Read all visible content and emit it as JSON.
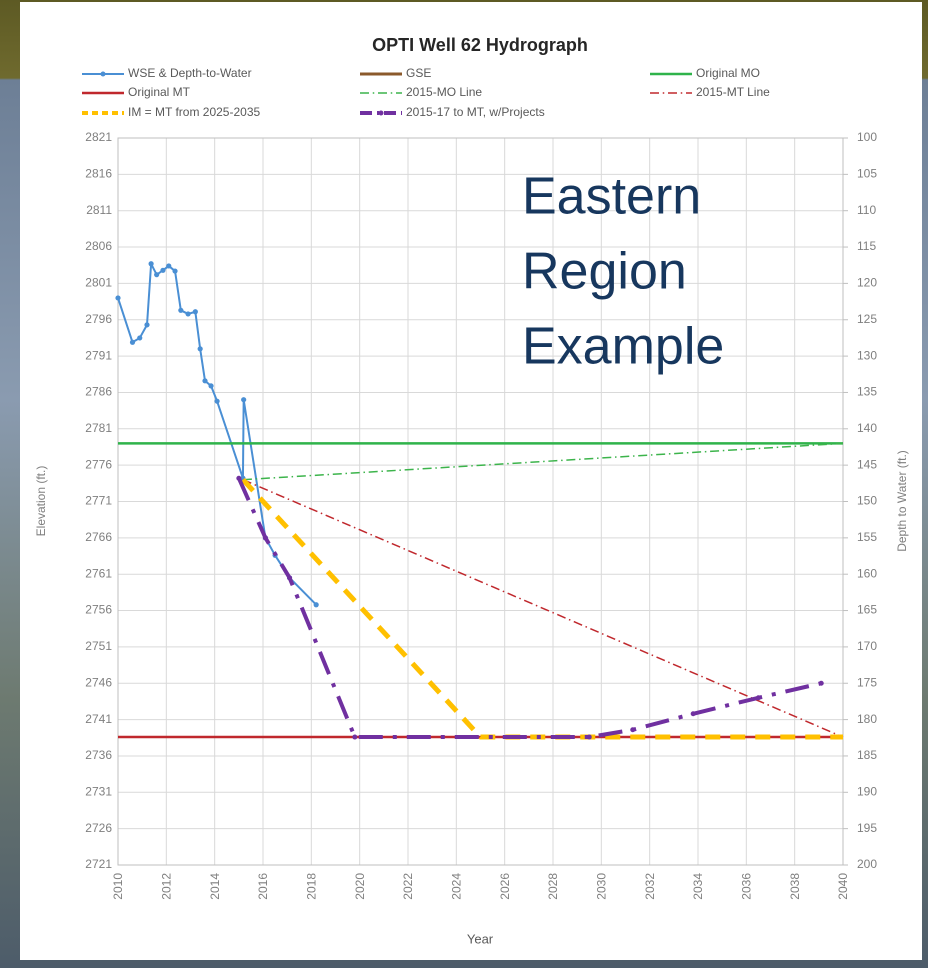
{
  "chart_data": {
    "type": "line",
    "title": "OPTI Well 62 Hydrograph",
    "annotation": [
      "Eastern",
      "Region",
      "Example"
    ],
    "x_label": "Year",
    "y_label": "Elevation (ft.)",
    "y2_label": "Depth to Water (ft.)",
    "xlim": [
      2010,
      2040
    ],
    "xticks": [
      2010,
      2012,
      2014,
      2016,
      2018,
      2020,
      2022,
      2024,
      2026,
      2028,
      2030,
      2032,
      2034,
      2036,
      2038,
      2040
    ],
    "ylim": [
      2721,
      2821
    ],
    "yticks": [
      2721,
      2726,
      2731,
      2736,
      2741,
      2746,
      2751,
      2756,
      2761,
      2766,
      2771,
      2776,
      2781,
      2786,
      2791,
      2796,
      2801,
      2806,
      2811,
      2816,
      2821
    ],
    "y2lim": [
      200,
      100
    ],
    "y2ticks": [
      100,
      105,
      110,
      115,
      120,
      125,
      130,
      135,
      140,
      145,
      150,
      155,
      160,
      165,
      170,
      175,
      180,
      185,
      190,
      195,
      200
    ],
    "grid": true,
    "legend": "top",
    "series": [
      {
        "name": "WSE & Depth-to-Water",
        "color": "#4a8fd4",
        "dash": "solid",
        "markers": true,
        "line_width": 2,
        "x": [
          2010.0,
          2010.6,
          2010.9,
          2011.2,
          2011.37,
          2011.6,
          2011.86,
          2012.1,
          2012.36,
          2012.6,
          2012.9,
          2013.2,
          2013.4,
          2013.6,
          2013.85,
          2014.1,
          2015.17,
          2015.2,
          2016.1,
          2016.5,
          2017.1,
          2018.2
        ],
        "values": [
          2799.0,
          2792.9,
          2793.5,
          2795.3,
          2803.7,
          2802.2,
          2802.8,
          2803.4,
          2802.7,
          2797.3,
          2796.8,
          2797.1,
          2792.0,
          2787.6,
          2786.9,
          2784.8,
          2774.2,
          2785.0,
          2766.0,
          2763.6,
          2760.5,
          2756.8
        ]
      },
      {
        "name": "GSE",
        "color": "#8b5a2b",
        "dash": "solid",
        "markers": false,
        "line_width": 3,
        "x": [],
        "values": []
      },
      {
        "name": "Original MO",
        "color": "#2fb34a",
        "dash": "solid",
        "markers": false,
        "line_width": 2.5,
        "x": [
          2010,
          2040
        ],
        "values": [
          2779.0,
          2779.0
        ]
      },
      {
        "name": "Original MT",
        "color": "#c0282d",
        "dash": "solid",
        "markers": false,
        "line_width": 2.5,
        "x": [
          2010,
          2040
        ],
        "values": [
          2738.6,
          2738.6
        ]
      },
      {
        "name": "2015-MO Line",
        "color": "#3cb44b",
        "dash": "dashdot",
        "markers": false,
        "line_width": 1.5,
        "x": [
          2015.17,
          2040
        ],
        "values": [
          2774.0,
          2779.0
        ]
      },
      {
        "name": "2015-MT Line",
        "color": "#c0282d",
        "dash": "dashdot",
        "markers": false,
        "line_width": 1.5,
        "x": [
          2015.17,
          2040
        ],
        "values": [
          2774.0,
          2738.6
        ]
      },
      {
        "name": "IM = MT from 2025-2035",
        "color": "#ffc000",
        "dash": "dashed",
        "markers": false,
        "line_width": 5,
        "x": [
          2015.17,
          2025.0,
          2040
        ],
        "values": [
          2774.0,
          2738.6,
          2738.6
        ]
      },
      {
        "name": "2015-17 to MT, w/Projects",
        "color": "#7030a0",
        "dash": "dashdot",
        "markers": true,
        "line_width": 4,
        "x": [
          2015.0,
          2016.1,
          2017.1,
          2019.8,
          2029.5,
          2031.3,
          2033.8,
          2036.5,
          2039.1
        ],
        "values": [
          2774.2,
          2766.0,
          2760.5,
          2738.6,
          2738.6,
          2739.6,
          2741.8,
          2744.0,
          2746.0
        ]
      }
    ]
  }
}
